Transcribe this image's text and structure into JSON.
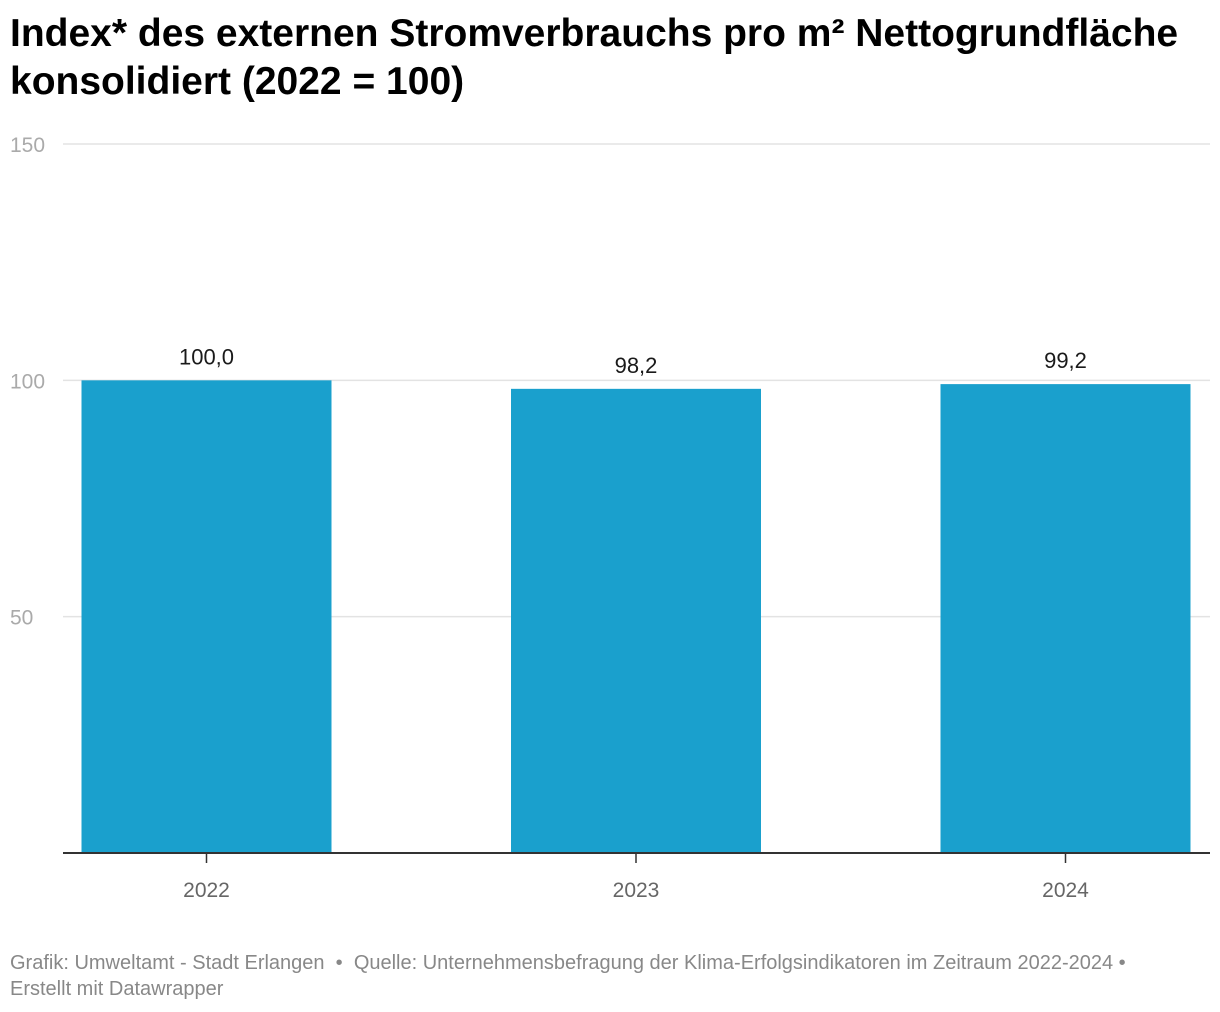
{
  "title": "Index* des externen Stromverbrauchs pro m² Nettogrundfläche konsolidiert (2022 = 100)",
  "footer": {
    "credit": "Grafik: Umweltamt - Stadt Erlangen",
    "source": "Quelle: Unternehmensbefragung der Klima-Erfolgsindikatoren im Zeitraum 2022-2024",
    "tool": "Erstellt mit Datawrapper"
  },
  "colors": {
    "bar": "#1aa0cd",
    "gridline": "#e3e3e3",
    "axis": "#333333"
  },
  "chart_data": {
    "type": "bar",
    "title": "Index* des externen Stromverbrauchs pro m² Nettogrundfläche konsolidiert (2022 = 100)",
    "categories": [
      "2022",
      "2023",
      "2024"
    ],
    "values": [
      100.0,
      98.2,
      99.2
    ],
    "value_labels": [
      "100,0",
      "98,2",
      "99,2"
    ],
    "y_ticks": [
      50,
      100,
      150
    ],
    "ylim": [
      0,
      150
    ],
    "xlabel": "",
    "ylabel": "",
    "grid": true,
    "legend": "none"
  }
}
